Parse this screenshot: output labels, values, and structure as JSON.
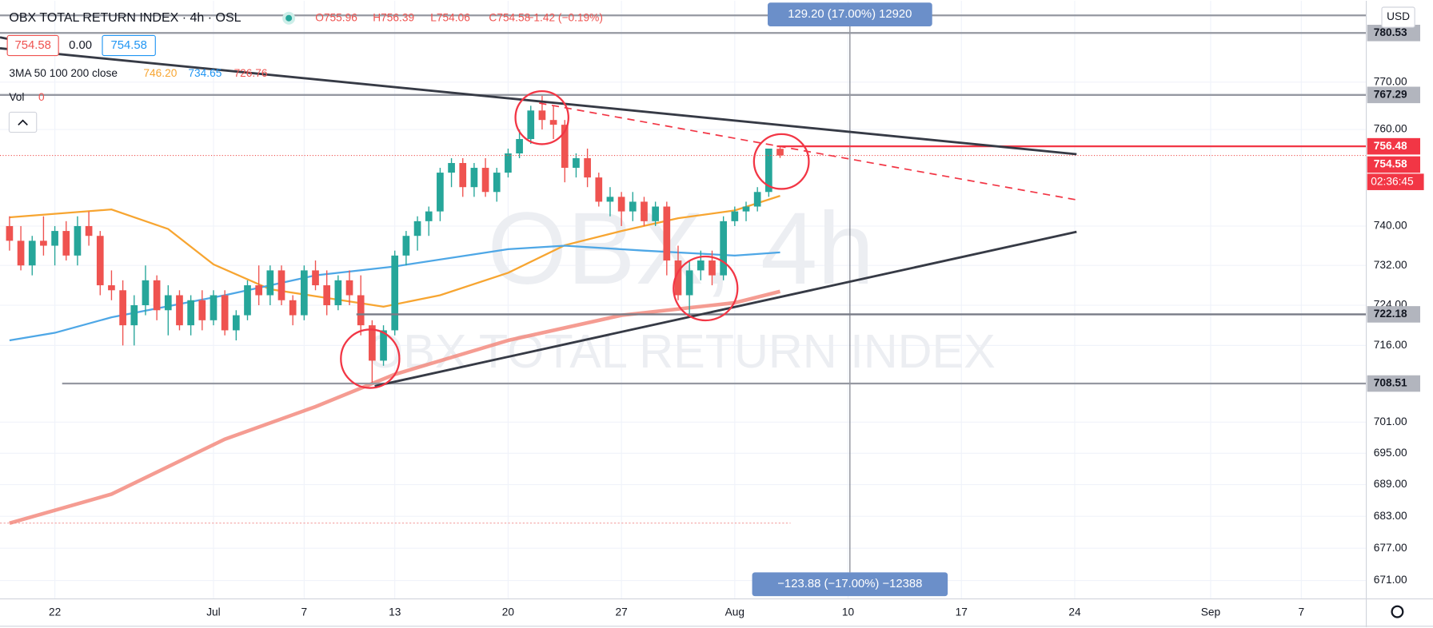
{
  "header": {
    "title": "OBX TOTAL RETURN INDEX · 4h · OSL",
    "ohlc": [
      "O755.96",
      "H756.39",
      "L754.06",
      "C754.58",
      "−1.42 (−0.19%)"
    ],
    "boxes": [
      "754.58",
      "0.00",
      "754.58"
    ],
    "indicator": "3MA 50 100 200 close",
    "vol_label": "Vol",
    "vol_value": "0",
    "currency": "USD",
    "countdown": "02:36:45"
  },
  "watermark": {
    "symbol": "OBX, 4h",
    "name": "OBX TOTAL RETURN INDEX"
  },
  "measure": {
    "up": "129.20 (17.00%) 12920",
    "down": "−123.88 (−17.00%) −12388"
  },
  "chart_data": {
    "type": "candlestick",
    "log_scale": true,
    "grid": true,
    "up_color": "#26a69a",
    "down_color": "#ef5350",
    "xlim": [
      -4.84,
      115.73
    ],
    "xticks": [
      {
        "value": 0,
        "label": "22"
      },
      {
        "value": 14,
        "label": "Jul"
      },
      {
        "value": 22,
        "label": "7"
      },
      {
        "value": 30,
        "label": "13"
      },
      {
        "value": 40,
        "label": "20"
      },
      {
        "value": 50,
        "label": "27"
      },
      {
        "value": 60,
        "label": "Aug"
      },
      {
        "value": 70,
        "label": "10"
      },
      {
        "value": 80,
        "label": "17"
      },
      {
        "value": 90,
        "label": "24"
      },
      {
        "value": 102,
        "label": "Sep"
      },
      {
        "value": 110,
        "label": "7"
      }
    ],
    "ylim": [
      667.6,
      787.5
    ],
    "yticks": [
      {
        "value": 770,
        "label": "770.00"
      },
      {
        "value": 760,
        "label": "760.00"
      },
      {
        "value": 740,
        "label": "740.00"
      },
      {
        "value": 732,
        "label": "732.00"
      },
      {
        "value": 724,
        "label": "724.00"
      },
      {
        "value": 716,
        "label": "716.00"
      },
      {
        "value": 701,
        "label": "701.00"
      },
      {
        "value": 695,
        "label": "695.00"
      },
      {
        "value": 689,
        "label": "689.00"
      },
      {
        "value": 683,
        "label": "683.00"
      },
      {
        "value": 677,
        "label": "677.00"
      },
      {
        "value": 671,
        "label": "671.00"
      }
    ],
    "x": [
      -4,
      -3,
      -2,
      -1,
      0,
      1,
      2,
      3,
      4,
      5,
      6,
      7,
      8,
      9,
      10,
      11,
      12,
      13,
      14,
      15,
      16,
      17,
      18,
      19,
      20,
      21,
      22,
      23,
      24,
      25,
      26,
      27,
      28,
      29,
      30,
      31,
      32,
      33,
      34,
      35,
      36,
      37,
      38,
      39,
      40,
      41,
      42,
      43,
      44,
      45,
      46,
      47,
      48,
      49,
      50,
      51,
      52,
      53,
      54,
      55,
      56,
      57,
      58,
      59,
      60,
      61,
      62,
      63,
      64
    ],
    "open": [
      740,
      737,
      732,
      737,
      736,
      739,
      734,
      740,
      738,
      728,
      727,
      720,
      724,
      729,
      723,
      726,
      720,
      725,
      721,
      726,
      719,
      722,
      728,
      726,
      731,
      725,
      722,
      731,
      728,
      724,
      729,
      726,
      720,
      713,
      719,
      734,
      738,
      741,
      743,
      751,
      753,
      748,
      752,
      747,
      751,
      755,
      758,
      764,
      762,
      761,
      752,
      754,
      750,
      745,
      746,
      743,
      745,
      741,
      744,
      733,
      726,
      731,
      733,
      730,
      741,
      743,
      744,
      747,
      755.96
    ],
    "high": [
      742,
      740,
      738,
      742,
      740,
      741,
      742,
      743,
      739,
      731,
      729,
      726,
      732,
      730,
      728,
      727,
      726,
      727,
      727,
      727,
      723,
      729,
      732,
      732,
      732,
      726,
      732,
      733,
      731,
      730,
      731,
      730,
      721,
      720,
      735,
      739,
      742,
      744,
      752,
      754,
      754,
      753,
      754,
      752,
      756,
      760,
      765,
      767.3,
      765,
      762,
      755,
      756,
      751,
      748,
      747,
      747,
      746,
      745,
      745,
      736,
      733,
      735,
      735,
      742,
      744,
      745,
      748,
      756,
      756.39
    ],
    "low": [
      735,
      731,
      730,
      734,
      732,
      733,
      732,
      736,
      726,
      725,
      716,
      716,
      722,
      721,
      718,
      719,
      718,
      719,
      720,
      718,
      717,
      721,
      724,
      724,
      724,
      720,
      721,
      727,
      722,
      723,
      724,
      718,
      708.5,
      712,
      718,
      732,
      735,
      738,
      741,
      748,
      746,
      746,
      746,
      745,
      750,
      754,
      757,
      760,
      758,
      749,
      750,
      748,
      744,
      742,
      740,
      741,
      740,
      740,
      730,
      725,
      722.2,
      729,
      728,
      729,
      740,
      741,
      743,
      746,
      754.06
    ],
    "close": [
      737,
      732,
      737,
      736,
      739,
      734,
      740,
      738,
      728,
      727,
      720,
      724,
      729,
      723,
      726,
      720,
      725,
      721,
      726,
      719,
      722,
      728,
      726,
      731,
      725,
      722,
      731,
      728,
      724,
      729,
      726,
      720,
      713,
      719,
      734,
      738,
      741,
      743,
      751,
      753,
      748,
      752,
      747,
      751,
      755,
      758,
      764,
      762,
      761,
      752,
      754,
      750,
      745,
      746,
      743,
      745,
      741,
      744,
      733,
      726,
      731,
      733,
      730,
      741,
      743,
      744,
      747,
      756,
      754.58
    ],
    "moving_averages": [
      {
        "color": "#f7a531",
        "legend_value": "746.20",
        "x": [
          -4,
          5,
          10,
          14,
          19,
          23,
          29,
          34,
          40,
          45,
          50,
          55,
          60,
          64
        ],
        "values": [
          741.8,
          743.4,
          739.4,
          732.2,
          727.2,
          725.8,
          723.7,
          726,
          730.5,
          736.1,
          739,
          741.6,
          743.2,
          746.2
        ]
      },
      {
        "color": "#4ea7e6",
        "legend_value": "734.65",
        "x": [
          -4,
          0,
          5,
          15,
          23,
          30,
          40,
          45,
          52,
          60,
          64
        ],
        "values": [
          717,
          718.5,
          721.6,
          726,
          730,
          731.8,
          735.3,
          736,
          735,
          734,
          734.65
        ]
      },
      {
        "color": "#f28377",
        "legend_value": "726.76",
        "x": [
          -4,
          5,
          15,
          23,
          30,
          40,
          50,
          60,
          64
        ],
        "values": [
          681.7,
          687.2,
          697.7,
          704,
          710.3,
          717,
          722,
          724.5,
          726.76
        ]
      }
    ],
    "price_lines": [
      {
        "value": 780.53,
        "color": "#9598a1"
      },
      {
        "value": 767.29,
        "color": "#9598a1"
      },
      {
        "value": 756.48,
        "color": "#f23645"
      },
      {
        "value": 722.18,
        "color": "#787b86"
      },
      {
        "value": 708.51,
        "color": "#9598a1"
      }
    ]
  }
}
